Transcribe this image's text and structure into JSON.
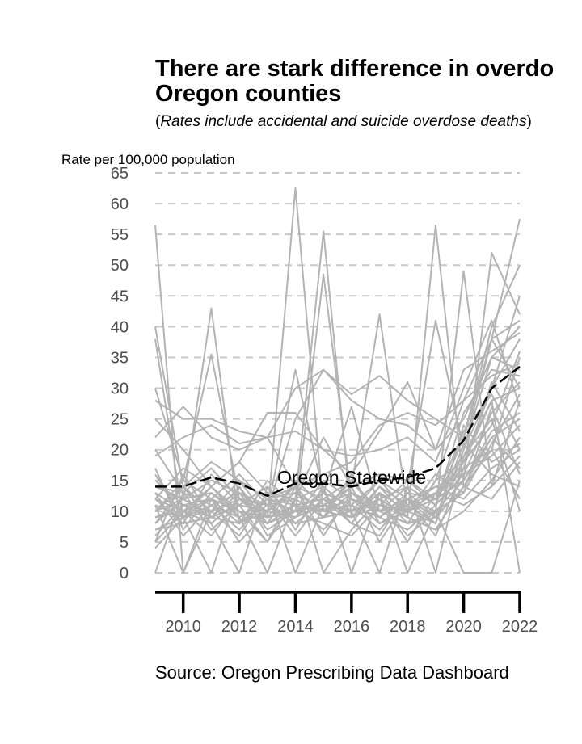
{
  "chart_data": {
    "type": "line",
    "title_line1": "There are stark difference in overdo",
    "title_line2": "Oregon counties",
    "subtitle_open": "(",
    "subtitle_text": "Rates include accidental and suicide overdose deaths",
    "subtitle_close": ")",
    "ylabel": "Rate  per  100,000  population",
    "caption": "Source: Oregon Prescribing Data Dashboard",
    "annotation": "Oregon Statewide",
    "ylim": [
      0,
      65
    ],
    "xlim": [
      2009,
      2022
    ],
    "yticks": [
      0,
      5,
      10,
      15,
      20,
      25,
      30,
      35,
      40,
      45,
      50,
      55,
      60,
      65
    ],
    "xticks": [
      2010,
      2012,
      2014,
      2016,
      2018,
      2020,
      2022
    ],
    "grid": "horizontal dashed",
    "colors": {
      "county": "#b3b3b3",
      "statewide": "#000000",
      "grid": "#c8c8c8",
      "text": "#4d4d4d"
    },
    "x": [
      2009,
      2010,
      2011,
      2012,
      2013,
      2014,
      2015,
      2016,
      2017,
      2018,
      2019,
      2020,
      2021,
      2022
    ],
    "statewide": {
      "values": [
        14,
        14,
        15.5,
        14.5,
        12.5,
        14.5,
        14.5,
        14,
        15,
        15.5,
        17,
        21.5,
        30,
        33.5
      ]
    },
    "series": [
      {
        "values": [
          56.5,
          0,
          12,
          8,
          10,
          9,
          15,
          12,
          8,
          10,
          8,
          20,
          38,
          57.5
        ]
      },
      {
        "values": [
          10,
          12,
          43,
          8,
          15,
          11,
          12,
          9,
          12,
          14,
          11,
          22,
          40,
          50
        ]
      },
      {
        "values": [
          5,
          10,
          8,
          12,
          9,
          62.5,
          10,
          15,
          10,
          12,
          9,
          18,
          30,
          45
        ]
      },
      {
        "values": [
          38,
          9,
          12,
          10,
          5,
          12,
          55.5,
          9,
          14,
          11,
          8,
          20,
          35,
          40
        ]
      },
      {
        "values": [
          8,
          14,
          10,
          15,
          9,
          10,
          48.5,
          12,
          10,
          8,
          15,
          18,
          28,
          30
        ]
      },
      {
        "values": [
          12,
          10,
          14,
          9,
          12,
          11,
          10,
          14,
          42,
          10,
          12,
          15,
          22,
          25
        ]
      },
      {
        "values": [
          10,
          12,
          9,
          11,
          10,
          14,
          12,
          10,
          12,
          9,
          56.5,
          14,
          20,
          35
        ]
      },
      {
        "values": [
          15,
          11,
          10,
          12,
          8,
          11,
          10,
          12,
          10,
          14,
          41,
          20,
          30,
          38
        ]
      },
      {
        "values": [
          9,
          10,
          12,
          8,
          11,
          9,
          13,
          11,
          9,
          12,
          10,
          49,
          14,
          28
        ]
      },
      {
        "values": [
          11,
          9,
          10,
          12,
          9,
          10,
          11,
          9,
          13,
          10,
          12,
          15,
          52,
          42
        ]
      },
      {
        "values": [
          30,
          15,
          35.5,
          12,
          10,
          25,
          33,
          29,
          32,
          28,
          25,
          22,
          38,
          41
        ]
      },
      {
        "values": [
          22,
          27,
          22,
          20,
          22,
          30,
          33,
          28,
          25,
          24,
          20,
          25,
          35,
          33
        ]
      },
      {
        "values": [
          28,
          25,
          25,
          23,
          22,
          14,
          16,
          18,
          24,
          26,
          24,
          28,
          38,
          30
        ]
      },
      {
        "values": [
          19,
          22,
          24,
          21,
          22,
          23,
          20,
          19,
          20,
          22,
          18,
          30,
          41,
          27
        ]
      },
      {
        "values": [
          25,
          20,
          14,
          18,
          26,
          26,
          20,
          16,
          23,
          31,
          20,
          33,
          36,
          39
        ]
      },
      {
        "values": [
          40,
          14,
          18,
          15,
          12,
          10,
          13,
          27,
          10,
          8,
          15,
          28,
          32,
          34
        ]
      },
      {
        "values": [
          14,
          12,
          15,
          13,
          10,
          33,
          13,
          11,
          15,
          12,
          14,
          16,
          26,
          31
        ]
      },
      {
        "values": [
          12,
          17,
          14,
          18,
          13,
          12,
          22,
          14,
          16,
          15,
          12,
          18,
          24,
          36
        ]
      },
      {
        "values": [
          7,
          8,
          16,
          11,
          14,
          8,
          9,
          16,
          8,
          11,
          14,
          12,
          17,
          20
        ]
      },
      {
        "values": [
          6,
          11,
          9,
          13,
          7,
          10,
          8,
          6,
          11,
          9,
          7,
          10,
          15,
          22
        ]
      },
      {
        "values": [
          13,
          6,
          11,
          7,
          12,
          6,
          12,
          8,
          6,
          13,
          9,
          14,
          12,
          18
        ]
      },
      {
        "values": [
          0,
          13,
          7,
          11,
          5,
          14,
          6,
          13,
          9,
          7,
          11,
          16,
          19,
          24
        ]
      },
      {
        "values": [
          10,
          14,
          8,
          0,
          14,
          7,
          14,
          0,
          13,
          0,
          10,
          0,
          0,
          15
        ]
      },
      {
        "values": [
          17,
          7,
          13,
          9,
          0,
          12,
          9,
          10,
          0,
          14,
          0,
          19,
          28,
          0
        ]
      },
      {
        "values": [
          4,
          9,
          0,
          14,
          8,
          15,
          0,
          7,
          12,
          5,
          13,
          11,
          14,
          19
        ]
      },
      {
        "values": [
          11,
          0,
          10,
          6,
          13,
          0,
          11,
          14,
          5,
          12,
          6,
          17,
          20,
          12
        ]
      },
      {
        "values": [
          8,
          12,
          13,
          10,
          9,
          11,
          7,
          12,
          10,
          8,
          9,
          21,
          16,
          14
        ]
      },
      {
        "values": [
          13,
          10,
          6,
          12,
          11,
          8,
          12,
          9,
          11,
          10,
          16,
          13,
          27,
          16
        ]
      },
      {
        "values": [
          9,
          11,
          12,
          5,
          10,
          13,
          10,
          11,
          7,
          12,
          8,
          24,
          18,
          21
        ]
      },
      {
        "values": [
          12,
          8,
          9,
          14,
          6,
          9,
          11,
          10,
          12,
          6,
          10,
          15,
          23,
          26
        ]
      },
      {
        "values": [
          14,
          13,
          11,
          9,
          12,
          14,
          9,
          13,
          10,
          11,
          13,
          19,
          25,
          10
        ]
      },
      {
        "values": [
          7,
          9,
          14,
          10,
          8,
          10,
          13,
          8,
          14,
          9,
          7,
          14,
          22,
          17
        ]
      },
      {
        "values": [
          16,
          9,
          11,
          13,
          11,
          8,
          12,
          15,
          9,
          13,
          12,
          23,
          29,
          20
        ]
      },
      {
        "values": [
          5,
          16,
          9,
          8,
          12,
          13,
          10,
          9,
          13,
          8,
          10,
          13,
          21,
          29
        ]
      },
      {
        "values": [
          20,
          13,
          17,
          12,
          9,
          15,
          11,
          13,
          11,
          15,
          11,
          26,
          33,
          32
        ]
      },
      {
        "values": [
          10,
          15,
          12,
          16,
          11,
          12,
          14,
          10,
          15,
          10,
          13,
          17,
          31,
          23
        ]
      }
    ]
  }
}
